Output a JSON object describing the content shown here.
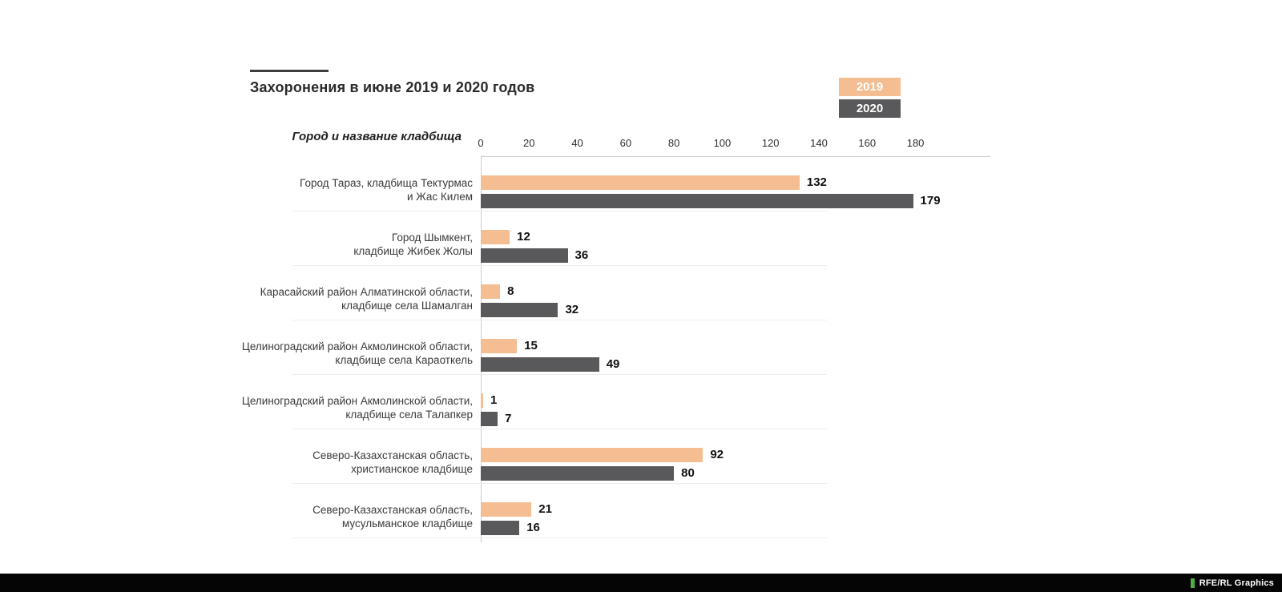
{
  "chart_data": {
    "type": "bar",
    "orientation": "horizontal",
    "title": "Захоронения в июне 2019 и 2020 годов",
    "axis_label": "Город и название кладбища",
    "x_ticks": [
      0,
      20,
      40,
      60,
      80,
      100,
      120,
      140,
      160,
      180
    ],
    "xlim": [
      0,
      210
    ],
    "grid": true,
    "legend_position": "top-right",
    "categories": [
      {
        "line1": "Город Тараз, кладбища Тектурмас",
        "line2": "и Жас Килем"
      },
      {
        "line1": "Город Шымкент,",
        "line2": "кладбище Жибек Жолы"
      },
      {
        "line1": "Карасайский район Алматинской области,",
        "line2": "кладбище села Шамалган"
      },
      {
        "line1": "Целиноградский район Акмолинской области,",
        "line2": "кладбище села Караоткель"
      },
      {
        "line1": "Целиноградский район Акмолинской области,",
        "line2": "кладбище села Талапкер"
      },
      {
        "line1": "Северо-Казахстанская область,",
        "line2": "христианское кладбище"
      },
      {
        "line1": "Северо-Казахстанская область,",
        "line2": "мусульманское кладбище"
      }
    ],
    "series": [
      {
        "name": "2019",
        "color": "#f4bd92",
        "values": [
          132,
          12,
          8,
          15,
          1,
          92,
          21
        ]
      },
      {
        "name": "2020",
        "color": "#59595b",
        "values": [
          179,
          36,
          32,
          49,
          7,
          80,
          16
        ]
      }
    ]
  },
  "footer": {
    "credit": "RFE/RL Graphics",
    "accent_color": "#4daf3f",
    "bar_color": "#050505"
  }
}
